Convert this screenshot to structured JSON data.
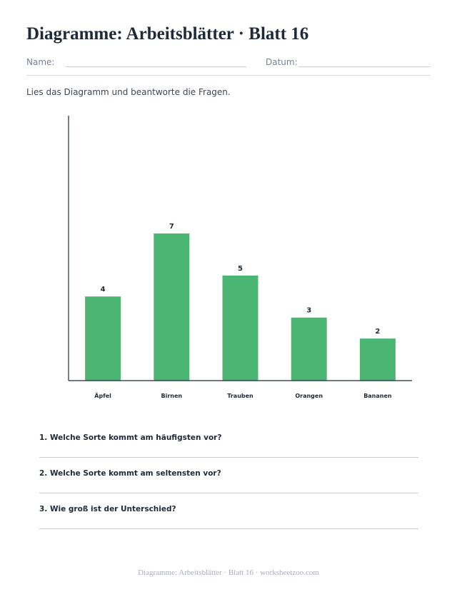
{
  "header": {
    "title": "Diagramme: Arbeitsblätter · Blatt 16",
    "name_label": "Name:",
    "date_label": "Datum:"
  },
  "instructions": "Lies das Diagramm und beantworte die Fragen.",
  "chart_data": {
    "type": "bar",
    "title": "",
    "xlabel": "",
    "ylabel": "",
    "categories": [
      "Äpfel",
      "Birnen",
      "Trauben",
      "Orangen",
      "Bananen"
    ],
    "values": [
      4,
      7,
      5,
      3,
      2
    ],
    "ylim": [
      0,
      12.6
    ],
    "bar_color": "#4bb673",
    "data_labels": true,
    "grid": false,
    "legend": "none"
  },
  "questions": [
    "1. Welche Sorte kommt am häufigsten vor?",
    "2. Welche Sorte kommt am seltensten vor?",
    "3. Wie groß ist der Unterschied?"
  ],
  "footer": "Diagramme: Arbeitsblätter · Blatt 16 · worksheetzoo.com"
}
